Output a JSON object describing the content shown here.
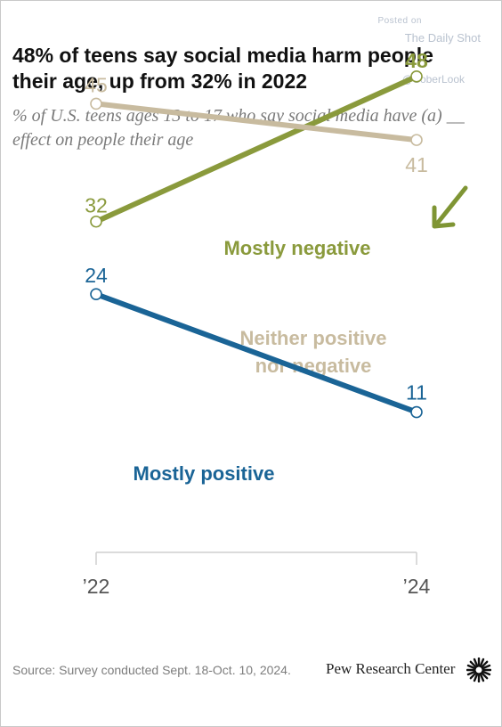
{
  "watermark": {
    "posted_on": "Posted on",
    "site": "The Daily Shot",
    "handle": "@SoberLook"
  },
  "title": "48% of teens say social media harm people their age, up from 32% in 2022",
  "subtitle": "% of U.S. teens ages 13 to 17 who say social media have (a) __ effect on people their age",
  "footer": {
    "source": "Source: Survey conducted Sept. 18-Oct. 10, 2024.",
    "brand": "Pew Research Center"
  },
  "colors": {
    "negative": "#8a9a3c",
    "neutral": "#c8bb9f",
    "positive": "#1a6496",
    "arrow": "#7f9534",
    "axis": "#cfcfcf"
  },
  "chart_data": {
    "type": "line",
    "x": [
      "’22",
      "’24"
    ],
    "ylim": [
      0,
      55
    ],
    "grid": false,
    "series": [
      {
        "name": "Mostly negative",
        "values": [
          32,
          48
        ],
        "color": "#8a9a3c"
      },
      {
        "name": "Neither positive nor negative",
        "values": [
          45,
          41
        ],
        "color": "#c8bb9f"
      },
      {
        "name": "Mostly positive",
        "values": [
          24,
          11
        ],
        "color": "#1a6496"
      }
    ]
  }
}
